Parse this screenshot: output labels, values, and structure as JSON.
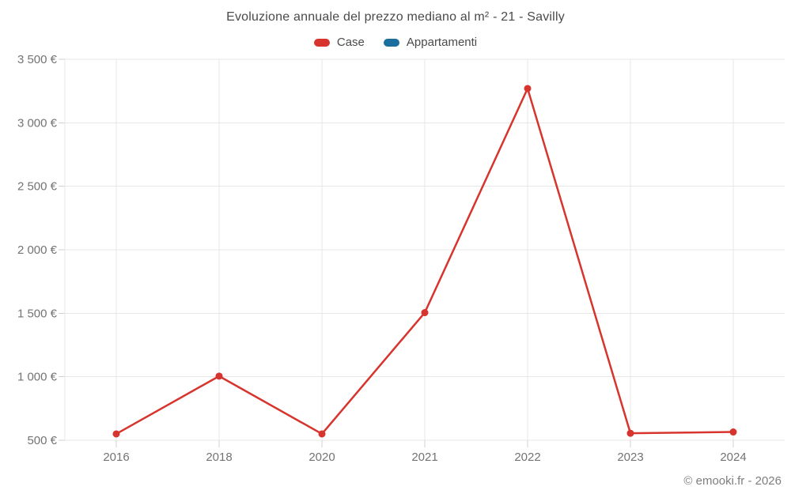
{
  "title": "Evoluzione annuale del prezzo mediano al m² - 21 - Savilly",
  "footer": {
    "credit": "© emooki.fr - 2026"
  },
  "colors": {
    "case_red": "#d7342d",
    "appartamenti_blue": "#1c6e9e",
    "grid": "#e7e7e7"
  },
  "chart_data": {
    "type": "line",
    "title": "Evoluzione annuale del prezzo mediano al m² - 21 - Savilly",
    "categories": [
      "2016",
      "2018",
      "2020",
      "2021",
      "2022",
      "2023",
      "2024"
    ],
    "series": [
      {
        "name": "Case",
        "color": "#d7342d",
        "values": [
          550,
          1005,
          550,
          1505,
          3270,
          555,
          565
        ]
      },
      {
        "name": "Appartamenti",
        "color": "#1c6e9e",
        "values": [
          null,
          null,
          null,
          null,
          null,
          null,
          null
        ]
      }
    ],
    "xlabel": "",
    "ylabel": "",
    "ylim": [
      500,
      3500
    ],
    "y_ticks": [
      {
        "value": 500,
        "label": "500 €"
      },
      {
        "value": 1000,
        "label": "1 000 €"
      },
      {
        "value": 1500,
        "label": "1 500 €"
      },
      {
        "value": 2000,
        "label": "2 000 €"
      },
      {
        "value": 2500,
        "label": "2 500 €"
      },
      {
        "value": 3000,
        "label": "3 000 €"
      },
      {
        "value": 3500,
        "label": "3 500 €"
      }
    ],
    "grid": true,
    "legend_position": "top"
  }
}
